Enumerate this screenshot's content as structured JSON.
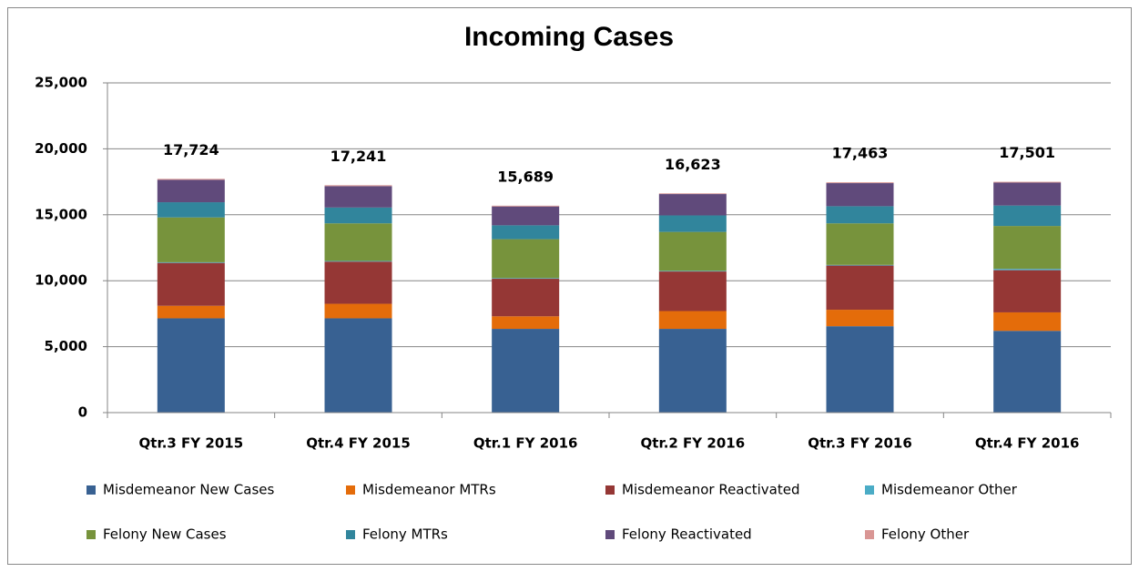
{
  "chart_data": {
    "type": "stacked_bar",
    "title": "Incoming Cases",
    "categories": [
      "Qtr.3 FY 2015",
      "Qtr.4 FY 2015",
      "Qtr.1 FY 2016",
      "Qtr.2 FY 2016",
      "Qtr.3 FY 2016",
      "Qtr.4 FY 2016"
    ],
    "series": [
      {
        "name": "Misdemeanor New Cases",
        "color": "#386192",
        "values": [
          7150,
          7150,
          6350,
          6350,
          6550,
          6200
        ]
      },
      {
        "name": "Misdemeanor MTRs",
        "color": "#e46c0a",
        "values": [
          950,
          1100,
          950,
          1350,
          1250,
          1400
        ]
      },
      {
        "name": "Misdemeanor Reactivated",
        "color": "#953735",
        "values": [
          3250,
          3200,
          2850,
          3000,
          3350,
          3200
        ]
      },
      {
        "name": "Misdemeanor Other",
        "color": "#4bacc6",
        "values": [
          50,
          50,
          50,
          50,
          50,
          100
        ]
      },
      {
        "name": "Felony New Cases",
        "color": "#77933c",
        "values": [
          3400,
          2850,
          2950,
          2950,
          3150,
          3250
        ]
      },
      {
        "name": "Felony MTRs",
        "color": "#31859c",
        "values": [
          1150,
          1200,
          1050,
          1250,
          1300,
          1550
        ]
      },
      {
        "name": "Felony Reactivated",
        "color": "#604a7b",
        "values": [
          1700,
          1620,
          1430,
          1620,
          1750,
          1740
        ]
      },
      {
        "name": "Felony Other",
        "color": "#d99694",
        "values": [
          74,
          71,
          59,
          53,
          63,
          61
        ]
      }
    ],
    "totals": [
      17724,
      17241,
      15689,
      16623,
      17463,
      17501
    ],
    "total_labels": [
      "17,724",
      "17,241",
      "15,689",
      "16,623",
      "17,463",
      "17,501"
    ],
    "ylim": [
      0,
      25000
    ],
    "yticks": [
      0,
      {
        "value": 5000,
        "label": "5,000"
      },
      {
        "value": 10000,
        "label": "10,000"
      },
      {
        "value": 15000,
        "label": "15,000"
      },
      {
        "value": 20000,
        "label": "20,000"
      },
      {
        "value": 25000,
        "label": "25,000"
      }
    ],
    "grid": true
  }
}
